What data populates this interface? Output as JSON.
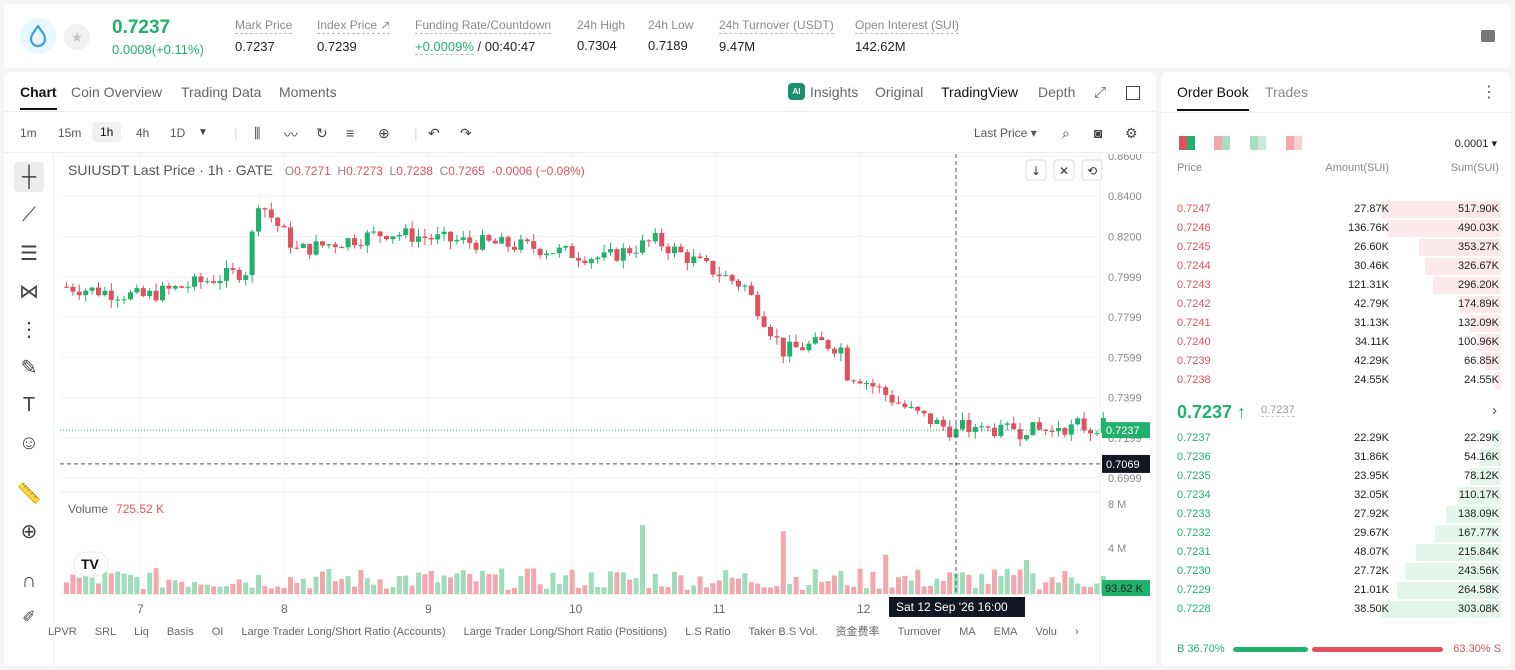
{
  "ticker": {
    "price": "0.7237",
    "change": "0.0008(+0.11%)"
  },
  "stats": [
    {
      "label": "Mark Price",
      "value": "0.7237"
    },
    {
      "label": "Index Price ↗",
      "value": "0.7239"
    },
    {
      "label": "Funding Rate/Countdown",
      "value_green": "+0.0009%",
      "value": " / 00:40:47"
    },
    {
      "label": "24h High",
      "value": "0.7304"
    },
    {
      "label": "24h Low",
      "value": "0.7189"
    },
    {
      "label": "24h Turnover (USDT)",
      "value": "9.47M"
    },
    {
      "label": "Open Interest (SUI)",
      "value": "142.62M"
    }
  ],
  "chart_tabs": [
    "Chart",
    "Coin Overview",
    "Trading Data",
    "Moments"
  ],
  "view_tabs": [
    "Insights",
    "Original",
    "TradingView",
    "Depth"
  ],
  "timeframes": [
    "1m",
    "15m",
    "1h",
    "4h",
    "1D"
  ],
  "price_type": "Last Price ▾",
  "legend": {
    "symbol": "SUIUSDT Last Price · 1h · GATE",
    "o": "O",
    "ov": "0.7271",
    "h": "H",
    "hv": "0.7273",
    "l": "L",
    "lv": "0.7238",
    "c": "C",
    "cv": "0.7265",
    "chg": "-0.0006 (−0.08%)"
  },
  "volume": {
    "label": "Volume",
    "value": "725.52 K"
  },
  "price_axis": [
    "0.8600",
    "0.8400",
    "0.8200",
    "0.7999",
    "0.7799",
    "0.7599",
    "0.7399",
    "0.7199",
    "0.6999"
  ],
  "vol_axis": [
    "8 M",
    "4 M"
  ],
  "time_axis": [
    "7",
    "8",
    "9",
    "10",
    "11",
    "12"
  ],
  "crosshair": {
    "time": "Sat 12 Sep '26   16:00",
    "price": "0.7069"
  },
  "last_price_tag": "0.7237",
  "vol_tag": "93.62 K",
  "indicators": [
    "LPVR",
    "SRL",
    "Liq",
    "Basis",
    "OI",
    "Large Trader Long/Short Ratio (Accounts)",
    "Large Trader Long/Short Ratio (Positions)",
    "L.S Ratio",
    "Taker B.S Vol.",
    "资金费率",
    "Turnover",
    "MA",
    "EMA",
    "Volu"
  ],
  "orderbook": {
    "tabs": [
      "Order Book",
      "Trades"
    ],
    "precision": "0.0001",
    "headers": [
      "Price",
      "Amount(SUI)",
      "Sum(SUI)"
    ],
    "asks": [
      {
        "p": "0.7247",
        "a": "27.87K",
        "s": "517.90K",
        "d": 1.0
      },
      {
        "p": "0.7246",
        "a": "136.76K",
        "s": "490.03K",
        "d": 0.95
      },
      {
        "p": "0.7245",
        "a": "26.60K",
        "s": "353.27K",
        "d": 0.68
      },
      {
        "p": "0.7244",
        "a": "30.46K",
        "s": "326.67K",
        "d": 0.63
      },
      {
        "p": "0.7243",
        "a": "121.31K",
        "s": "296.20K",
        "d": 0.57
      },
      {
        "p": "0.7242",
        "a": "42.79K",
        "s": "174.89K",
        "d": 0.34
      },
      {
        "p": "0.7241",
        "a": "31.13K",
        "s": "132.09K",
        "d": 0.26
      },
      {
        "p": "0.7240",
        "a": "34.11K",
        "s": "100.96K",
        "d": 0.2
      },
      {
        "p": "0.7239",
        "a": "42.29K",
        "s": "66.85K",
        "d": 0.13
      },
      {
        "p": "0.7238",
        "a": "24.55K",
        "s": "24.55K",
        "d": 0.05
      }
    ],
    "mid": {
      "price": "0.7237 ↑",
      "mark": "0.7237"
    },
    "bids": [
      {
        "p": "0.7237",
        "a": "22.29K",
        "s": "22.29K",
        "d": 0.07
      },
      {
        "p": "0.7236",
        "a": "31.86K",
        "s": "54.16K",
        "d": 0.18
      },
      {
        "p": "0.7235",
        "a": "23.95K",
        "s": "78.12K",
        "d": 0.26
      },
      {
        "p": "0.7234",
        "a": "32.05K",
        "s": "110.17K",
        "d": 0.36
      },
      {
        "p": "0.7233",
        "a": "27.92K",
        "s": "138.09K",
        "d": 0.46
      },
      {
        "p": "0.7232",
        "a": "29.67K",
        "s": "167.77K",
        "d": 0.55
      },
      {
        "p": "0.7231",
        "a": "48.07K",
        "s": "215.84K",
        "d": 0.71
      },
      {
        "p": "0.7230",
        "a": "27.72K",
        "s": "243.56K",
        "d": 0.8
      },
      {
        "p": "0.7229",
        "a": "21.01K",
        "s": "264.58K",
        "d": 0.87
      },
      {
        "p": "0.7228",
        "a": "38.50K",
        "s": "303.08K",
        "d": 1.0
      }
    ],
    "buy_ratio": "B 36.70%",
    "sell_ratio": "63.30% S",
    "buy_frac": 0.367
  },
  "colors": {
    "up": "#20b26c",
    "down": "#e0515e"
  }
}
